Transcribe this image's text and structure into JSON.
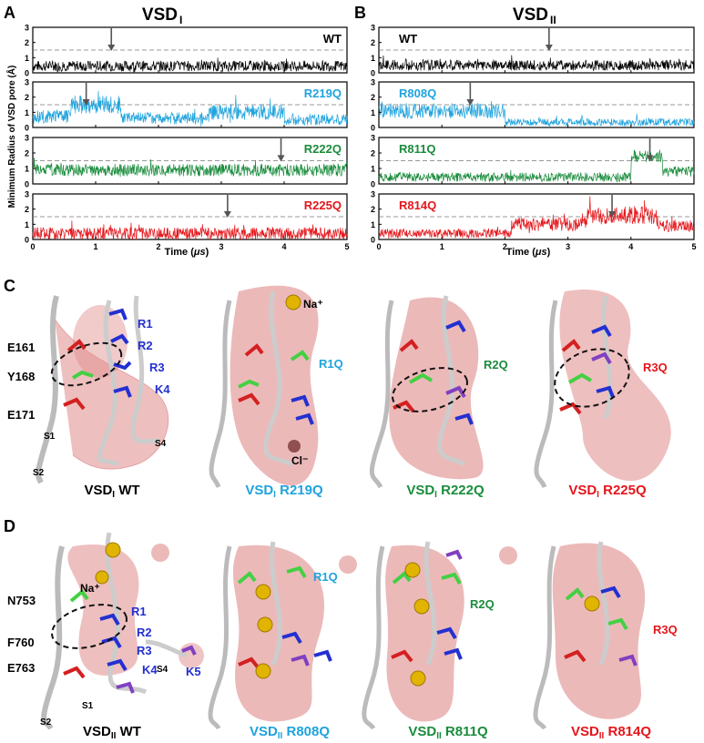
{
  "panels": {
    "A": {
      "letter": "A",
      "title": "VSD",
      "title_sub": "I"
    },
    "B": {
      "letter": "B",
      "title": "VSD",
      "title_sub": "II"
    },
    "C": {
      "letter": "C"
    },
    "D": {
      "letter": "D"
    }
  },
  "axes": {
    "ylabel": "Minimum Radius of VSD pore (Å)",
    "xlabel": "Time (μs)",
    "xlabel_main": "Time (",
    "xlabel_mu": "μs",
    "xlabel_close": ")"
  },
  "chart_data": [
    {
      "type": "line",
      "panel": "A",
      "name": "WT",
      "color": "#000000",
      "xlim": [
        0,
        5
      ],
      "ylim": [
        0,
        3
      ],
      "xticks": [
        "0",
        "1",
        "2",
        "3",
        "4",
        "5"
      ],
      "yticks": [
        "0",
        "1",
        "2",
        "3"
      ],
      "threshold": 1.5,
      "arrow_x": 1.25,
      "segments": [
        {
          "x0": 0,
          "x1": 5,
          "mean": 0.45,
          "amp": 0.35
        }
      ]
    },
    {
      "type": "line",
      "panel": "A",
      "name": "R219Q",
      "color": "#1fa3dd",
      "xlim": [
        0,
        5
      ],
      "ylim": [
        0,
        3
      ],
      "xticks": [
        "0",
        "1",
        "2",
        "3",
        "4",
        "5"
      ],
      "yticks": [
        "0",
        "1",
        "2",
        "3"
      ],
      "threshold": 1.5,
      "arrow_x": 0.85,
      "segments": [
        {
          "x0": 0,
          "x1": 0.6,
          "mean": 0.7,
          "amp": 0.45
        },
        {
          "x0": 0.6,
          "x1": 1.4,
          "mean": 1.5,
          "amp": 0.6
        },
        {
          "x0": 1.4,
          "x1": 2.8,
          "mean": 0.6,
          "amp": 0.4
        },
        {
          "x0": 2.8,
          "x1": 4.0,
          "mean": 1.0,
          "amp": 0.5
        },
        {
          "x0": 4.0,
          "x1": 5,
          "mean": 0.5,
          "amp": 0.35
        }
      ]
    },
    {
      "type": "line",
      "panel": "A",
      "name": "R222Q",
      "color": "#1a8c3c",
      "xlim": [
        0,
        5
      ],
      "ylim": [
        0,
        3
      ],
      "xticks": [
        "0",
        "1",
        "2",
        "3",
        "4",
        "5"
      ],
      "yticks": [
        "0",
        "1",
        "2",
        "3"
      ],
      "threshold": 1.5,
      "arrow_x": 3.95,
      "segments": [
        {
          "x0": 0,
          "x1": 5,
          "mean": 0.9,
          "amp": 0.4
        }
      ]
    },
    {
      "type": "line",
      "panel": "A",
      "name": "R225Q",
      "color": "#e4161b",
      "xlim": [
        0,
        5
      ],
      "ylim": [
        0,
        3
      ],
      "xticks": [
        "0",
        "1",
        "2",
        "3",
        "4",
        "5"
      ],
      "yticks": [
        "0",
        "1",
        "2",
        "3"
      ],
      "threshold": 1.5,
      "arrow_x": 3.1,
      "segments": [
        {
          "x0": 0,
          "x1": 5,
          "mean": 0.4,
          "amp": 0.4
        }
      ]
    },
    {
      "type": "line",
      "panel": "B",
      "name": "WT",
      "color": "#000000",
      "xlim": [
        0,
        5
      ],
      "ylim": [
        0,
        3
      ],
      "xticks": [
        "0",
        "1",
        "2",
        "3",
        "4",
        "5"
      ],
      "yticks": [
        "0",
        "1",
        "2",
        "3"
      ],
      "threshold": 1.5,
      "arrow_x": 2.7,
      "segments": [
        {
          "x0": 0,
          "x1": 5,
          "mean": 0.5,
          "amp": 0.35
        }
      ]
    },
    {
      "type": "line",
      "panel": "B",
      "name": "R808Q",
      "color": "#1fa3dd",
      "xlim": [
        0,
        5
      ],
      "ylim": [
        0,
        3
      ],
      "xticks": [
        "0",
        "1",
        "2",
        "3",
        "4",
        "5"
      ],
      "yticks": [
        "0",
        "1",
        "2",
        "3"
      ],
      "threshold": 1.5,
      "arrow_x": 1.45,
      "segments": [
        {
          "x0": 0,
          "x1": 2.0,
          "mean": 1.1,
          "amp": 0.5
        },
        {
          "x0": 2.0,
          "x1": 5,
          "mean": 0.35,
          "amp": 0.25
        }
      ]
    },
    {
      "type": "line",
      "panel": "B",
      "name": "R811Q",
      "color": "#1a8c3c",
      "xlim": [
        0,
        5
      ],
      "ylim": [
        0,
        3
      ],
      "xticks": [
        "0",
        "1",
        "2",
        "3",
        "4",
        "5"
      ],
      "yticks": [
        "0",
        "1",
        "2",
        "3"
      ],
      "threshold": 1.5,
      "arrow_x": 4.3,
      "segments": [
        {
          "x0": 0,
          "x1": 4.0,
          "mean": 0.45,
          "amp": 0.3
        },
        {
          "x0": 4.0,
          "x1": 4.5,
          "mean": 1.8,
          "amp": 0.4
        },
        {
          "x0": 4.5,
          "x1": 5,
          "mean": 0.8,
          "amp": 0.35
        }
      ]
    },
    {
      "type": "line",
      "panel": "B",
      "name": "R814Q",
      "color": "#e4161b",
      "xlim": [
        0,
        5
      ],
      "ylim": [
        0,
        3
      ],
      "xticks": [
        "0",
        "1",
        "2",
        "3",
        "4",
        "5"
      ],
      "yticks": [
        "0",
        "1",
        "2",
        "3"
      ],
      "threshold": 1.5,
      "arrow_x": 3.7,
      "segments": [
        {
          "x0": 0,
          "x1": 2.1,
          "mean": 0.4,
          "amp": 0.3
        },
        {
          "x0": 2.1,
          "x1": 3.3,
          "mean": 1.0,
          "amp": 0.45
        },
        {
          "x0": 3.3,
          "x1": 4.4,
          "mean": 1.6,
          "amp": 0.6
        },
        {
          "x0": 4.4,
          "x1": 5,
          "mean": 0.9,
          "amp": 0.4
        }
      ]
    }
  ],
  "structures_C": [
    {
      "title": "VSD",
      "sub": "I",
      "suffix": " WT",
      "color": "#000000"
    },
    {
      "title": "VSD",
      "sub": "I",
      "suffix": " R219Q",
      "color": "#1fa3dd"
    },
    {
      "title": "VSD",
      "sub": "I",
      "suffix": " R222Q",
      "color": "#1a8c3c"
    },
    {
      "title": "VSD",
      "sub": "I",
      "suffix": " R225Q",
      "color": "#e4161b"
    }
  ],
  "structures_D": [
    {
      "title": "VSD",
      "sub": "II",
      "suffix": " WT",
      "color": "#000000"
    },
    {
      "title": "VSD",
      "sub": "II",
      "suffix": " R808Q",
      "color": "#1fa3dd"
    },
    {
      "title": "VSD",
      "sub": "II",
      "suffix": " R811Q",
      "color": "#1a8c3c"
    },
    {
      "title": "VSD",
      "sub": "II",
      "suffix": " R814Q",
      "color": "#e4161b"
    }
  ],
  "labels_C": {
    "E161": "E161",
    "Y168": "Y168",
    "E171": "E171",
    "R1": "R1",
    "R2": "R2",
    "R3": "R3",
    "K4": "K4",
    "S1": "S1",
    "S2": "S2",
    "S4": "S4",
    "Na": "Na⁺",
    "Cl": "Cl⁻",
    "R1Q": "R1Q",
    "R2Q": "R2Q",
    "R3Q": "R3Q"
  },
  "labels_D": {
    "N753": "N753",
    "F760": "F760",
    "E763": "E763",
    "Na": "Na⁺",
    "R1": "R1",
    "R2": "R2",
    "R3": "R3",
    "K4": "K4",
    "K5": "K5",
    "S1": "S1",
    "S2": "S2",
    "S4": "S4",
    "R1Q": "R1Q",
    "R2Q": "R2Q",
    "R3Q": "R3Q"
  },
  "colors": {
    "acidic": "#d42020",
    "basic": "#2330d0",
    "aromatic": "#44d044",
    "mutant": "#8040c0",
    "water": "#e08a8a",
    "sodium": "#e0b400",
    "threshold_line": "#777777",
    "arrow": "#555555"
  }
}
